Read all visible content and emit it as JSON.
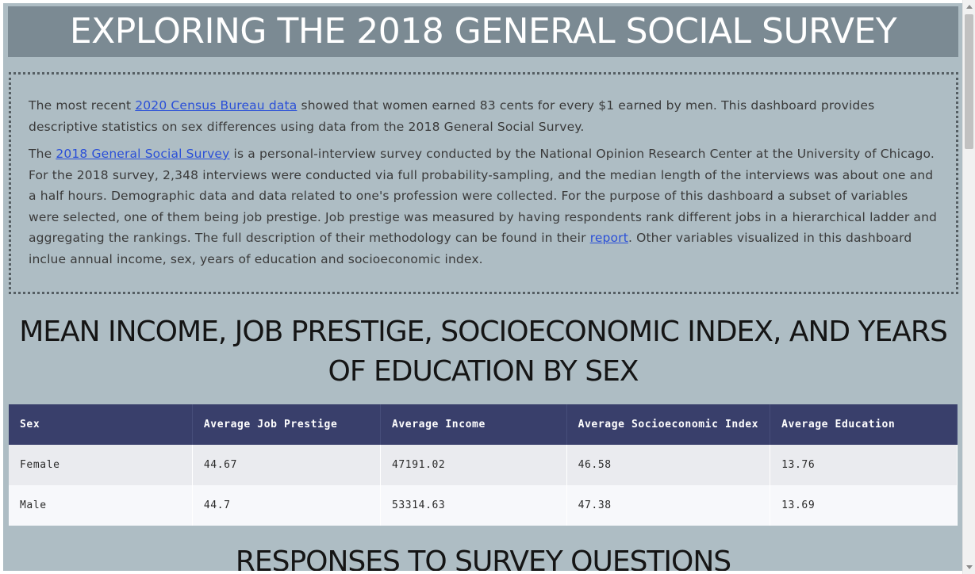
{
  "page": {
    "title": "EXPLORING THE 2018 GENERAL SOCIAL SURVEY"
  },
  "intro": {
    "p1_before": "The most recent ",
    "p1_link": "2020 Census Bureau data",
    "p1_after": " showed that women earned 83 cents for every $1 earned by men. This dashboard provides descriptive statistics on sex differences using data from the 2018 General Social Survey.",
    "p2_before": "The ",
    "p2_link": "2018 General Social Survey",
    "p2_middle": " is a personal-interview survey conducted by the National Opinion Research Center at the University of Chicago. For the 2018 survey, 2,348 interviews were conducted via full probability-sampling, and the median length of the interviews was about one and a half hours. Demographic data and data related to one's profession were collected. For the purpose of this dashboard a subset of variables were selected, one of them being job prestige. Job prestige was measured by having respondents rank different jobs in a hierarchical ladder and aggregating the rankings. The full description of their methodology can be found in their ",
    "p2_link2": "report",
    "p2_after": ". Other variables visualized in this dashboard inclue annual income, sex, years of education and socioeconomic index."
  },
  "table_section": {
    "heading": "MEAN INCOME, JOB PRESTIGE, SOCIOECONOMIC INDEX, AND YEARS OF EDUCATION BY SEX",
    "columns": [
      "Sex",
      "Average Job Prestige",
      "Average Income",
      "Average Socioeconomic Index",
      "Average Education"
    ],
    "rows": [
      [
        "Female",
        "44.67",
        "47191.02",
        "46.58",
        "13.76"
      ],
      [
        "Male",
        "44.7",
        "53314.63",
        "47.38",
        "13.69"
      ]
    ]
  },
  "next_section": {
    "heading": "RESPONSES TO SURVEY QUESTIONS"
  },
  "colors": {
    "background": "#aebdc4",
    "banner": "#7b8a93",
    "table_header": "#393f6b",
    "link": "#2a4fd8"
  }
}
